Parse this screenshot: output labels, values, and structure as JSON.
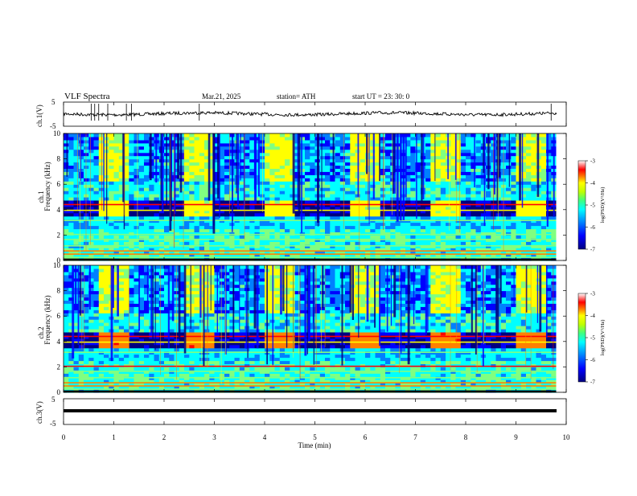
{
  "header": {
    "title": "VLF  Spectra",
    "date": "Mar.21, 2025",
    "station": "station= ATH",
    "start": "start  UT  =    23: 30: 0"
  },
  "chart_data": [
    {
      "type": "line",
      "ylabel": "ch.1(V)",
      "ylim": [
        -5,
        5
      ],
      "ytick_labels": [
        "5",
        "-5"
      ],
      "xlim": [
        0,
        10
      ],
      "approx_level": 0.3,
      "spikes_min": [
        0.55,
        0.62,
        0.7,
        0.88,
        1.25,
        1.35,
        2.7,
        9.7
      ]
    },
    {
      "type": "heatmap",
      "ylabel": "ch.1\nFrequency (kHz)",
      "ylim": [
        0,
        10
      ],
      "ytick_labels": [
        "10",
        "8",
        "6",
        "4",
        "2",
        "0"
      ],
      "xlim": [
        0,
        9.8
      ],
      "transmitter_on_min": [
        [
          0.7,
          1.3
        ],
        [
          2.35,
          2.95
        ],
        [
          4.0,
          4.6
        ],
        [
          5.65,
          6.25
        ],
        [
          7.3,
          7.9
        ],
        [
          8.95,
          9.55
        ]
      ],
      "transmitter_band_khz": [
        3.5,
        4.5
      ],
      "colorbar": {
        "label": "log(PSD)(V²/Hz)",
        "range": [
          -7,
          -3
        ],
        "tick_labels": [
          "-3",
          "-4",
          "-5",
          "-6",
          "-7"
        ]
      }
    },
    {
      "type": "heatmap",
      "ylabel": "ch.2\nFrequency (kHz)",
      "ylim": [
        0,
        10
      ],
      "ytick_labels": [
        "10",
        "8",
        "6",
        "4",
        "2",
        "0"
      ],
      "xlim": [
        0,
        9.8
      ],
      "transmitter_on_min": [
        [
          0.7,
          1.3
        ],
        [
          2.35,
          2.95
        ],
        [
          4.0,
          4.6
        ],
        [
          5.65,
          6.25
        ],
        [
          7.3,
          7.9
        ],
        [
          8.95,
          9.55
        ]
      ],
      "transmitter_band_khz": [
        3.5,
        4.5
      ],
      "colorbar": {
        "label": "log(PSD)(V²/Hz)",
        "range": [
          -7,
          -3
        ],
        "tick_labels": [
          "-3",
          "-4",
          "-5",
          "-6",
          "-7"
        ]
      }
    },
    {
      "type": "line",
      "ylabel": "ch.3(V)",
      "ylim": [
        -5,
        5
      ],
      "ytick_labels": [
        "5",
        "-5"
      ],
      "xlim": [
        0,
        10
      ],
      "approx_level": 0
    }
  ],
  "xaxis": {
    "label": "Time  (min)",
    "tick_labels": [
      "0",
      "1",
      "2",
      "3",
      "4",
      "5",
      "6",
      "7",
      "8",
      "9",
      "10"
    ]
  },
  "colors": {
    "colormap": [
      "#00007f",
      "#0000ff",
      "#0080ff",
      "#00ffff",
      "#80ff80",
      "#ffff00",
      "#ff8000",
      "#ff0000",
      "#ffffff"
    ],
    "trace": "#000000"
  }
}
